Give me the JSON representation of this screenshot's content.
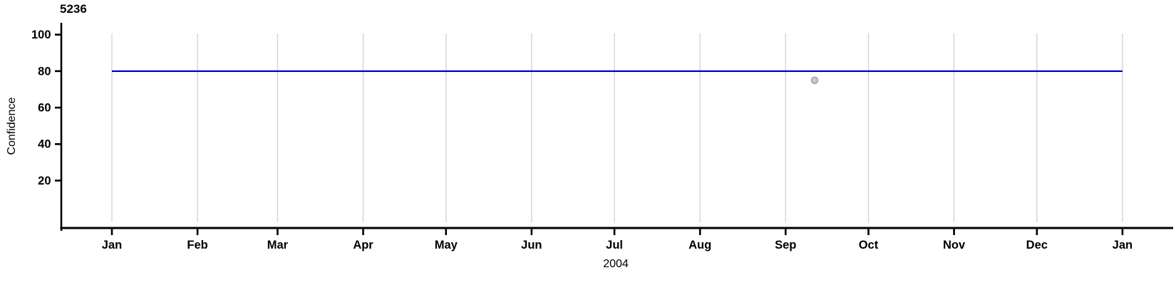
{
  "chart_data": {
    "type": "line",
    "title": "5236",
    "ylabel": "Confidence",
    "xlabel": "2004",
    "x_axis": {
      "unit": "days since 2004-01-01",
      "tick_labels": [
        "Jan",
        "Feb",
        "Mar",
        "Apr",
        "May",
        "Jun",
        "Jul",
        "Aug",
        "Sep",
        "Oct",
        "Nov",
        "Dec",
        "Jan"
      ],
      "tick_days": [
        0,
        31,
        60,
        91,
        121,
        152,
        182,
        213,
        244,
        274,
        305,
        335,
        366
      ],
      "range": [
        0,
        366
      ]
    },
    "y_axis": {
      "ticks": [
        100,
        80,
        60,
        40,
        20
      ],
      "range": [
        -6,
        106.5
      ]
    },
    "grid": {
      "vertical": true,
      "horizontal": false
    },
    "legend": "none",
    "series": [
      {
        "name": "confidence-level-line",
        "type": "line",
        "color": "#0000cc",
        "points": [
          {
            "day": 0,
            "value": 80
          },
          {
            "day": 366,
            "value": 80
          }
        ]
      },
      {
        "name": "observation-point",
        "type": "scatter",
        "fill": "#c9c9c9",
        "stroke": "#8f8f8f",
        "points": [
          {
            "day": 254.5,
            "value": 75,
            "approx_date": "2004-09-11"
          }
        ]
      }
    ],
    "colors": {
      "axis": "#000000",
      "grid": "#d4d4d4",
      "line": "#0000cc",
      "point_fill": "#c9c9c9",
      "point_stroke": "#8f8f8f",
      "background": "#ffffff"
    }
  }
}
